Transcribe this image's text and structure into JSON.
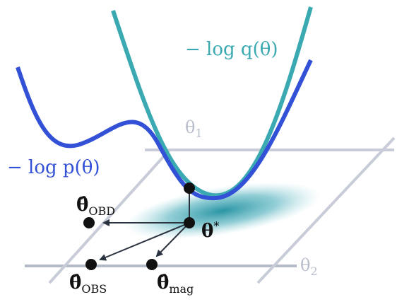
{
  "labels": {
    "neg_log_q": "− log q(θ)",
    "neg_log_p": "− log p(θ)",
    "theta1": {
      "symbol": "θ",
      "subscript": "1"
    },
    "theta2": {
      "symbol": "θ",
      "subscript": "2"
    },
    "theta_star": {
      "symbol": "θ",
      "superscript": "*"
    },
    "theta_obd": {
      "symbol": "θ̂",
      "subscript": "OBD"
    },
    "theta_obs": {
      "symbol": "θ̂",
      "subscript": "OBS"
    },
    "theta_mag": {
      "symbol": "θ̂",
      "subscript": "mag"
    }
  }
}
